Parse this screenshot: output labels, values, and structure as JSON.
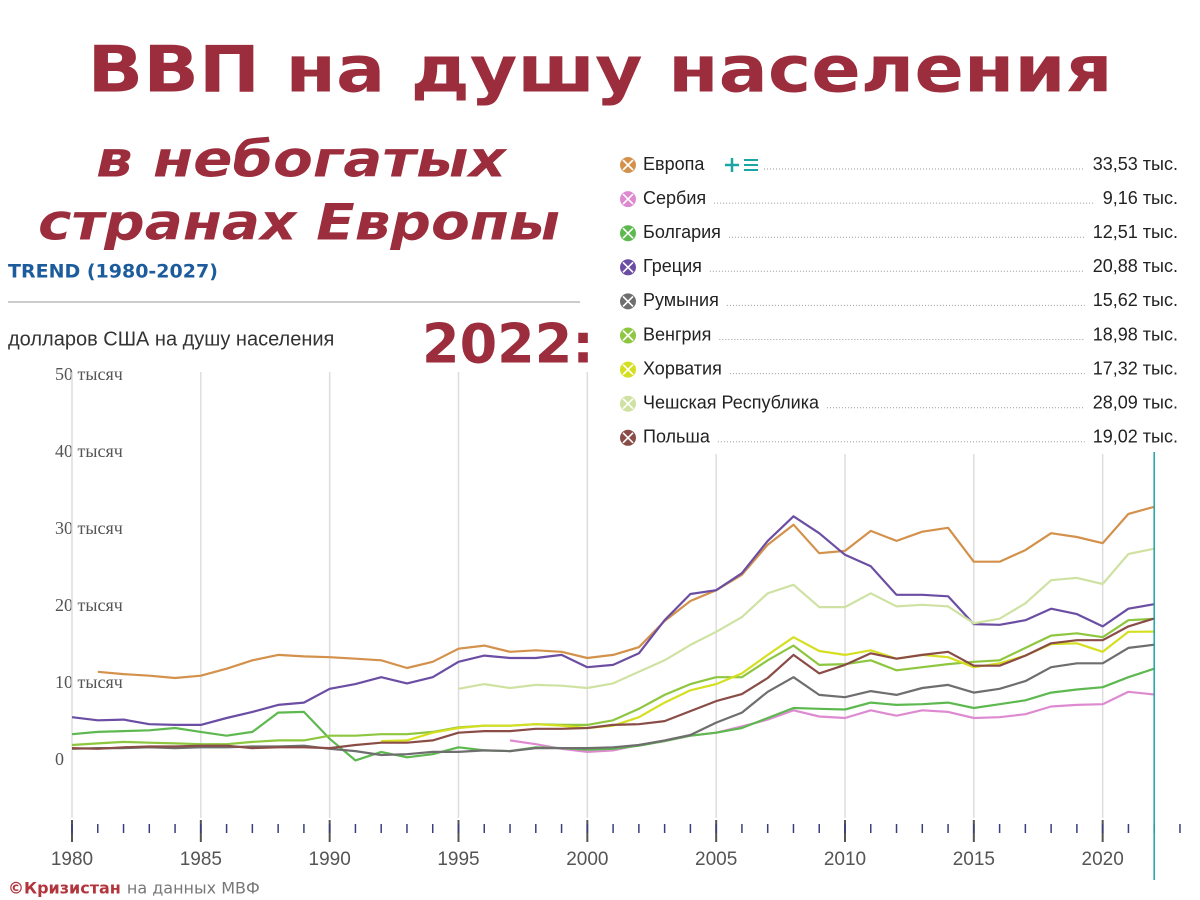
{
  "chart_data": {
    "type": "line",
    "title": "ВВП на душу населения",
    "subtitle": [
      "в небогатых",
      "странах Европы"
    ],
    "tag": "TREND (1980-2027)",
    "ylabel": "долларов США на душу населения",
    "legend_title": "2022:",
    "source_brand": "©Кризистан",
    "source_text": "на данных МВФ",
    "x": [
      1980,
      1981,
      1982,
      1983,
      1984,
      1985,
      1986,
      1987,
      1988,
      1989,
      1990,
      1991,
      1992,
      1993,
      1994,
      1995,
      1996,
      1997,
      1998,
      1999,
      2000,
      2001,
      2002,
      2003,
      2004,
      2005,
      2006,
      2007,
      2008,
      2009,
      2010,
      2011,
      2012,
      2013,
      2014,
      2015,
      2016,
      2017,
      2018,
      2019,
      2020,
      2021,
      2022
    ],
    "xlim": [
      1980,
      2023.7
    ],
    "xticks": [
      1980,
      1985,
      1990,
      1995,
      2000,
      2005,
      2010,
      2015,
      2020
    ],
    "xminor_ticks": [
      1980,
      1981,
      1982,
      1983,
      1984,
      1985,
      1986,
      1987,
      1988,
      1989,
      1990,
      1991,
      1992,
      1993,
      1994,
      1995,
      1996,
      1997,
      1998,
      1999,
      2000,
      2001,
      2002,
      2003,
      2004,
      2005,
      2006,
      2007,
      2008,
      2009,
      2010,
      2011,
      2012,
      2013,
      2014,
      2015,
      2016,
      2017,
      2018,
      2019,
      2020,
      2021,
      2022,
      2023
    ],
    "grid": true,
    "highlight_x": 2022,
    "highlight_color": "#1ba5a5",
    "ylim": [
      -7,
      51.5
    ],
    "yticks": [
      0,
      {
        "value": 10,
        "label": "10 тысяч"
      },
      {
        "value": 20,
        "label": "20 тысяч"
      },
      {
        "value": 30,
        "label": "30 тысяч"
      },
      {
        "value": 40,
        "label": "40 тысяч"
      },
      {
        "value": 50,
        "label": "50 тысяч"
      }
    ],
    "series": [
      {
        "name": "Европа",
        "color": "#d3914b",
        "values": [
          null,
          12.1,
          11.8,
          11.6,
          11.3,
          11.6,
          12.5,
          13.6,
          14.3,
          14.1,
          14.0,
          13.8,
          13.6,
          12.6,
          13.4,
          15.1,
          15.5,
          14.7,
          14.9,
          14.7,
          13.9,
          14.3,
          15.3,
          18.7,
          21.3,
          22.7,
          24.7,
          28.6,
          31.2,
          27.5,
          27.8,
          30.4,
          29.1,
          30.3,
          30.8,
          26.4,
          26.4,
          27.9,
          30.1,
          29.6,
          28.8,
          32.6,
          33.53
        ],
        "value_labels": {
          "42": "33,53 тыс."
        }
      },
      {
        "name": "Сербия",
        "color": "#de8ad0",
        "values": [
          null,
          null,
          null,
          null,
          null,
          null,
          null,
          null,
          null,
          null,
          null,
          null,
          null,
          null,
          null,
          null,
          null,
          3.2,
          2.7,
          2.1,
          1.7,
          1.9,
          2.6,
          3.1,
          3.8,
          4.2,
          5.0,
          5.9,
          7.1,
          6.3,
          6.1,
          7.1,
          6.4,
          7.1,
          6.9,
          6.1,
          6.2,
          6.6,
          7.6,
          7.8,
          7.9,
          9.5,
          9.16
        ],
        "value_labels": {
          "42": "9,16 тыс."
        }
      },
      {
        "name": "Болгария",
        "color": "#5db94f",
        "values": [
          4.0,
          4.3,
          4.4,
          4.5,
          4.8,
          4.3,
          3.8,
          4.3,
          6.8,
          6.9,
          3.4,
          0.6,
          1.7,
          1.0,
          1.4,
          2.3,
          1.9,
          1.8,
          2.3,
          2.2,
          2.0,
          2.1,
          2.5,
          3.1,
          3.8,
          4.2,
          4.8,
          6.1,
          7.4,
          7.3,
          7.2,
          8.1,
          7.8,
          7.9,
          8.1,
          7.4,
          7.9,
          8.4,
          9.4,
          9.8,
          10.1,
          11.4,
          12.51
        ],
        "value_labels": {
          "42": "12,51 тыс."
        }
      },
      {
        "name": "Греция",
        "color": "#6b4ea3",
        "values": [
          6.2,
          5.8,
          5.9,
          5.3,
          5.2,
          5.2,
          6.1,
          6.9,
          7.8,
          8.1,
          9.9,
          10.5,
          11.4,
          10.6,
          11.4,
          13.4,
          14.2,
          13.9,
          13.9,
          14.3,
          12.7,
          13.0,
          14.5,
          18.8,
          22.2,
          22.7,
          24.9,
          29.1,
          32.3,
          30.1,
          27.3,
          25.8,
          22.1,
          22.1,
          21.9,
          18.3,
          18.2,
          18.8,
          20.3,
          19.6,
          18.0,
          20.3,
          20.88
        ],
        "value_labels": {
          "42": "20,88 тыс."
        }
      },
      {
        "name": "Румыния",
        "color": "#6e6e6e",
        "values": [
          2.1,
          2.2,
          2.2,
          2.3,
          2.2,
          2.3,
          2.3,
          2.4,
          2.4,
          2.5,
          2.1,
          1.8,
          1.3,
          1.4,
          1.7,
          1.7,
          1.9,
          1.8,
          2.2,
          2.2,
          2.2,
          2.3,
          2.6,
          3.2,
          3.9,
          5.5,
          6.8,
          9.5,
          11.4,
          9.1,
          8.8,
          9.6,
          9.1,
          10.0,
          10.4,
          9.4,
          9.9,
          10.9,
          12.7,
          13.2,
          13.2,
          15.2,
          15.62
        ],
        "value_labels": {
          "42": "15,62 тыс."
        }
      },
      {
        "name": "Венгрия",
        "color": "#8dc63f",
        "values": [
          2.6,
          2.8,
          3.0,
          2.9,
          2.8,
          2.7,
          2.7,
          3.0,
          3.2,
          3.2,
          3.8,
          3.8,
          4.0,
          4.0,
          4.3,
          4.9,
          5.1,
          5.1,
          5.3,
          5.2,
          5.2,
          5.8,
          7.3,
          9.1,
          10.5,
          11.4,
          11.4,
          13.6,
          15.5,
          13.0,
          13.1,
          13.6,
          12.3,
          12.7,
          13.1,
          13.4,
          13.6,
          15.2,
          16.8,
          17.1,
          16.6,
          18.8,
          18.98
        ],
        "value_labels": {
          "42": "18,98 тыс."
        }
      },
      {
        "name": "Хорватия",
        "color": "#d5df22",
        "values": [
          null,
          null,
          null,
          null,
          null,
          null,
          null,
          null,
          null,
          null,
          null,
          null,
          3.1,
          3.2,
          4.2,
          4.8,
          5.1,
          5.1,
          5.3,
          5.1,
          4.8,
          5.1,
          6.2,
          8.1,
          9.7,
          10.5,
          11.9,
          14.3,
          16.6,
          14.8,
          14.3,
          14.9,
          13.8,
          14.3,
          14.0,
          12.7,
          13.2,
          14.2,
          15.7,
          15.8,
          14.7,
          17.3,
          17.32
        ],
        "value_labels": {
          "42": "17,32 тыс."
        }
      },
      {
        "name": "Чешская Республика",
        "color": "#cfe2a3",
        "values": [
          null,
          null,
          null,
          null,
          null,
          null,
          null,
          null,
          null,
          null,
          null,
          null,
          null,
          null,
          null,
          9.9,
          10.5,
          10.0,
          10.4,
          10.3,
          10.0,
          10.6,
          12.1,
          13.6,
          15.6,
          17.3,
          19.2,
          22.3,
          23.4,
          20.5,
          20.5,
          22.3,
          20.6,
          20.8,
          20.6,
          18.4,
          19.0,
          21.0,
          24.0,
          24.3,
          23.5,
          27.4,
          28.09
        ],
        "value_labels": {
          "42": "28,09 тыс."
        }
      },
      {
        "name": "Польша",
        "color": "#8a4c47",
        "values": [
          2.2,
          2.1,
          2.3,
          2.4,
          2.4,
          2.5,
          2.5,
          2.2,
          2.3,
          2.3,
          2.2,
          2.6,
          2.9,
          2.9,
          3.2,
          4.2,
          4.4,
          4.4,
          4.7,
          4.7,
          4.8,
          5.2,
          5.3,
          5.7,
          7.0,
          8.3,
          9.2,
          11.3,
          14.3,
          11.9,
          13.0,
          14.5,
          13.8,
          14.3,
          14.7,
          12.9,
          12.9,
          14.2,
          15.8,
          16.2,
          16.2,
          18.0,
          19.02
        ],
        "value_labels": {
          "42": "19,02 тыс."
        }
      }
    ]
  }
}
